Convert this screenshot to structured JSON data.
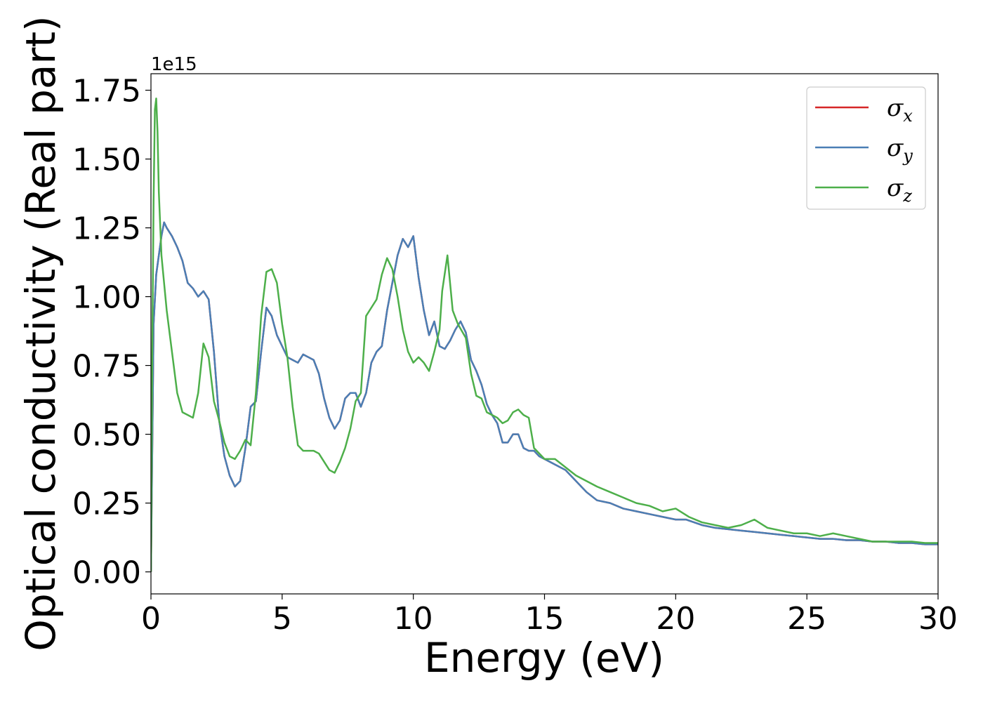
{
  "chart_data": {
    "type": "line",
    "title": "",
    "xlabel": "Energy (eV)",
    "ylabel": "Optical conductivity (Real part)",
    "y_offset_label": "1e15",
    "xlim": [
      0,
      30
    ],
    "ylim": [
      -0.08,
      1.81
    ],
    "x_ticks": [
      0,
      5,
      10,
      15,
      20,
      25,
      30
    ],
    "x_tick_labels": [
      "0",
      "5",
      "10",
      "15",
      "20",
      "25",
      "30"
    ],
    "y_ticks": [
      0,
      0.25,
      0.5,
      0.75,
      1.0,
      1.25,
      1.5,
      1.75
    ],
    "y_tick_labels": [
      "0.00",
      "0.25",
      "0.50",
      "0.75",
      "1.00",
      "1.25",
      "1.50",
      "1.75"
    ],
    "grid": false,
    "legend_position": "top-right",
    "series": [
      {
        "name": "σx",
        "legend_symbol": "σ",
        "legend_sub": "x",
        "color": "#d62728",
        "x": [
          0,
          0.05,
          0.1,
          0.2,
          0.3,
          0.4,
          0.5,
          0.6,
          0.8,
          1.0,
          1.2,
          1.4,
          1.6,
          1.8,
          2.0,
          2.2,
          2.4,
          2.6,
          2.8,
          3.0,
          3.2,
          3.4,
          3.6,
          3.8,
          4.0,
          4.2,
          4.4,
          4.6,
          4.8,
          5.0,
          5.2,
          5.4,
          5.6,
          5.8,
          6.0,
          6.2,
          6.4,
          6.6,
          6.8,
          7.0,
          7.2,
          7.4,
          7.6,
          7.8,
          8.0,
          8.2,
          8.4,
          8.6,
          8.8,
          9.0,
          9.2,
          9.4,
          9.6,
          9.8,
          9.9,
          10.0,
          10.2,
          10.4,
          10.6,
          10.8,
          11.0,
          11.2,
          11.4,
          11.6,
          11.8,
          12.0,
          12.2,
          12.4,
          12.6,
          12.8,
          13.0,
          13.2,
          13.4,
          13.6,
          13.8,
          14.0,
          14.2,
          14.4,
          14.6,
          14.8,
          15.0,
          15.4,
          15.8,
          16.2,
          16.6,
          17.0,
          17.5,
          18.0,
          18.5,
          19.0,
          19.5,
          20.0,
          20.4,
          20.7,
          21.0,
          21.5,
          22.0,
          22.5,
          23.0,
          23.5,
          24.0,
          24.5,
          25.0,
          25.5,
          26.0,
          26.5,
          27.0,
          27.5,
          28.0,
          28.5,
          29.0,
          29.5,
          30.0
        ],
        "values": [
          0.0,
          0.45,
          0.9,
          1.08,
          1.15,
          1.22,
          1.27,
          1.25,
          1.22,
          1.18,
          1.13,
          1.05,
          1.03,
          1.0,
          1.02,
          0.99,
          0.8,
          0.55,
          0.42,
          0.35,
          0.31,
          0.33,
          0.45,
          0.6,
          0.62,
          0.8,
          0.96,
          0.93,
          0.86,
          0.82,
          0.78,
          0.77,
          0.76,
          0.79,
          0.78,
          0.77,
          0.72,
          0.63,
          0.56,
          0.52,
          0.55,
          0.63,
          0.65,
          0.65,
          0.6,
          0.65,
          0.76,
          0.8,
          0.82,
          0.95,
          1.05,
          1.15,
          1.21,
          1.18,
          1.2,
          1.22,
          1.07,
          0.95,
          0.86,
          0.91,
          0.82,
          0.81,
          0.84,
          0.88,
          0.91,
          0.87,
          0.77,
          0.73,
          0.68,
          0.61,
          0.57,
          0.54,
          0.47,
          0.47,
          0.5,
          0.5,
          0.45,
          0.44,
          0.44,
          0.42,
          0.41,
          0.39,
          0.37,
          0.33,
          0.29,
          0.26,
          0.25,
          0.23,
          0.22,
          0.21,
          0.2,
          0.19,
          0.19,
          0.18,
          0.17,
          0.16,
          0.155,
          0.15,
          0.145,
          0.14,
          0.135,
          0.13,
          0.125,
          0.12,
          0.12,
          0.115,
          0.115,
          0.11,
          0.11,
          0.105,
          0.105,
          0.1,
          0.1
        ]
      },
      {
        "name": "σy",
        "legend_symbol": "σ",
        "legend_sub": "y",
        "color": "#4a7fb5",
        "x": [
          0,
          0.05,
          0.1,
          0.2,
          0.3,
          0.4,
          0.5,
          0.6,
          0.8,
          1.0,
          1.2,
          1.4,
          1.6,
          1.8,
          2.0,
          2.2,
          2.4,
          2.6,
          2.8,
          3.0,
          3.2,
          3.4,
          3.6,
          3.8,
          4.0,
          4.2,
          4.4,
          4.6,
          4.8,
          5.0,
          5.2,
          5.4,
          5.6,
          5.8,
          6.0,
          6.2,
          6.4,
          6.6,
          6.8,
          7.0,
          7.2,
          7.4,
          7.6,
          7.8,
          8.0,
          8.2,
          8.4,
          8.6,
          8.8,
          9.0,
          9.2,
          9.4,
          9.6,
          9.8,
          9.9,
          10.0,
          10.2,
          10.4,
          10.6,
          10.8,
          11.0,
          11.2,
          11.4,
          11.6,
          11.8,
          12.0,
          12.2,
          12.4,
          12.6,
          12.8,
          13.0,
          13.2,
          13.4,
          13.6,
          13.8,
          14.0,
          14.2,
          14.4,
          14.6,
          14.8,
          15.0,
          15.4,
          15.8,
          16.2,
          16.6,
          17.0,
          17.5,
          18.0,
          18.5,
          19.0,
          19.5,
          20.0,
          20.4,
          20.7,
          21.0,
          21.5,
          22.0,
          22.5,
          23.0,
          23.5,
          24.0,
          24.5,
          25.0,
          25.5,
          26.0,
          26.5,
          27.0,
          27.5,
          28.0,
          28.5,
          29.0,
          29.5,
          30.0
        ],
        "values": [
          0.0,
          0.45,
          0.9,
          1.08,
          1.15,
          1.22,
          1.27,
          1.25,
          1.22,
          1.18,
          1.13,
          1.05,
          1.03,
          1.0,
          1.02,
          0.99,
          0.8,
          0.55,
          0.42,
          0.35,
          0.31,
          0.33,
          0.45,
          0.6,
          0.62,
          0.8,
          0.96,
          0.93,
          0.86,
          0.82,
          0.78,
          0.77,
          0.76,
          0.79,
          0.78,
          0.77,
          0.72,
          0.63,
          0.56,
          0.52,
          0.55,
          0.63,
          0.65,
          0.65,
          0.6,
          0.65,
          0.76,
          0.8,
          0.82,
          0.95,
          1.05,
          1.15,
          1.21,
          1.18,
          1.2,
          1.22,
          1.07,
          0.95,
          0.86,
          0.91,
          0.82,
          0.81,
          0.84,
          0.88,
          0.91,
          0.87,
          0.77,
          0.73,
          0.68,
          0.61,
          0.57,
          0.54,
          0.47,
          0.47,
          0.5,
          0.5,
          0.45,
          0.44,
          0.44,
          0.42,
          0.41,
          0.39,
          0.37,
          0.33,
          0.29,
          0.26,
          0.25,
          0.23,
          0.22,
          0.21,
          0.2,
          0.19,
          0.19,
          0.18,
          0.17,
          0.16,
          0.155,
          0.15,
          0.145,
          0.14,
          0.135,
          0.13,
          0.125,
          0.12,
          0.12,
          0.115,
          0.115,
          0.11,
          0.11,
          0.105,
          0.105,
          0.1,
          0.1
        ]
      },
      {
        "name": "σz",
        "legend_symbol": "σ",
        "legend_sub": "z",
        "color": "#4daf4a",
        "x": [
          0,
          0.05,
          0.1,
          0.15,
          0.2,
          0.25,
          0.3,
          0.4,
          0.5,
          0.6,
          0.8,
          1.0,
          1.2,
          1.4,
          1.6,
          1.8,
          2.0,
          2.2,
          2.4,
          2.6,
          2.8,
          3.0,
          3.2,
          3.4,
          3.6,
          3.8,
          4.0,
          4.2,
          4.4,
          4.6,
          4.8,
          5.0,
          5.2,
          5.4,
          5.6,
          5.8,
          6.0,
          6.2,
          6.4,
          6.6,
          6.8,
          7.0,
          7.2,
          7.4,
          7.6,
          7.8,
          8.0,
          8.2,
          8.4,
          8.6,
          8.8,
          9.0,
          9.2,
          9.4,
          9.6,
          9.8,
          10.0,
          10.2,
          10.4,
          10.6,
          10.8,
          11.0,
          11.1,
          11.3,
          11.5,
          11.7,
          12.0,
          12.2,
          12.4,
          12.6,
          12.8,
          13.0,
          13.2,
          13.4,
          13.6,
          13.8,
          14.0,
          14.2,
          14.4,
          14.6,
          14.8,
          15.0,
          15.4,
          15.8,
          16.2,
          16.6,
          17.0,
          17.5,
          18.0,
          18.5,
          19.0,
          19.5,
          20.0,
          20.5,
          21.0,
          21.5,
          22.0,
          22.5,
          23.0,
          23.5,
          24.0,
          24.5,
          25.0,
          25.5,
          26.0,
          26.5,
          27.0,
          27.5,
          28.0,
          28.5,
          29.0,
          29.5,
          30.0
        ],
        "values": [
          0.0,
          0.8,
          1.35,
          1.68,
          1.72,
          1.6,
          1.38,
          1.15,
          1.05,
          0.95,
          0.8,
          0.65,
          0.58,
          0.57,
          0.56,
          0.65,
          0.83,
          0.78,
          0.62,
          0.55,
          0.47,
          0.42,
          0.41,
          0.44,
          0.48,
          0.46,
          0.65,
          0.93,
          1.09,
          1.1,
          1.05,
          0.9,
          0.78,
          0.6,
          0.46,
          0.44,
          0.44,
          0.44,
          0.43,
          0.4,
          0.37,
          0.36,
          0.4,
          0.45,
          0.52,
          0.62,
          0.65,
          0.93,
          0.96,
          0.99,
          1.08,
          1.14,
          1.1,
          1.0,
          0.88,
          0.8,
          0.76,
          0.78,
          0.76,
          0.73,
          0.8,
          0.88,
          1.02,
          1.15,
          0.95,
          0.9,
          0.85,
          0.72,
          0.64,
          0.63,
          0.58,
          0.57,
          0.56,
          0.54,
          0.55,
          0.58,
          0.59,
          0.57,
          0.56,
          0.45,
          0.43,
          0.41,
          0.41,
          0.38,
          0.35,
          0.33,
          0.31,
          0.29,
          0.27,
          0.25,
          0.24,
          0.22,
          0.23,
          0.2,
          0.18,
          0.17,
          0.16,
          0.17,
          0.19,
          0.16,
          0.15,
          0.14,
          0.14,
          0.13,
          0.14,
          0.13,
          0.12,
          0.11,
          0.11,
          0.11,
          0.11,
          0.105,
          0.105
        ]
      }
    ]
  }
}
